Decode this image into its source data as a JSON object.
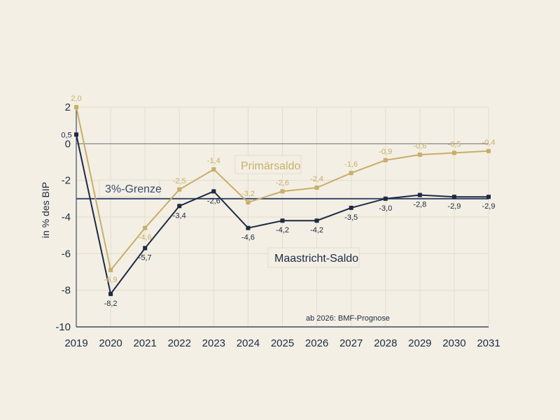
{
  "chart_data": {
    "type": "line",
    "ylabel": "in % des BIP",
    "ylim": [
      -10,
      2
    ],
    "yticks": [
      2,
      0,
      -2,
      -4,
      -6,
      -8,
      -10
    ],
    "categories": [
      "2019",
      "2020",
      "2021",
      "2022",
      "2023",
      "2024",
      "2025",
      "2026",
      "2027",
      "2028",
      "2029",
      "2030",
      "2031"
    ],
    "grid": true,
    "series": [
      {
        "name": "Primärsaldo",
        "color": "#c8ae6a",
        "values": [
          2.0,
          -6.9,
          -4.6,
          -2.5,
          -1.4,
          -3.2,
          -2.6,
          -2.4,
          -1.6,
          -0.9,
          -0.6,
          -0.5,
          -0.4
        ],
        "labels": [
          "2,0",
          "-6,9",
          "-4,6",
          "-2,5",
          "-1,4",
          "-3,2",
          "-2,6",
          "-2,4",
          "-1,6",
          "-0,9",
          "-0,6",
          "-0,5",
          "-0,4"
        ]
      },
      {
        "name": "Maastricht-Saldo",
        "color": "#1d2a44",
        "values": [
          0.5,
          -8.2,
          -5.7,
          -3.4,
          -2.6,
          -4.6,
          -4.2,
          -4.2,
          -3.5,
          -3.0,
          -2.8,
          -2.9,
          -2.9
        ],
        "labels": [
          "0,5",
          "-8,2",
          "-5,7",
          "-3,4",
          "-2,6",
          "-4,6",
          "-4,2",
          "-4,2",
          "-3,5",
          "-3,0",
          "-2,8",
          "-2,9",
          "-2,9"
        ]
      }
    ],
    "reference_line": {
      "name": "3%-Grenze",
      "value": -3,
      "color": "#3a4a6b"
    },
    "annotation": "ab 2026: BMF-Prognose"
  }
}
